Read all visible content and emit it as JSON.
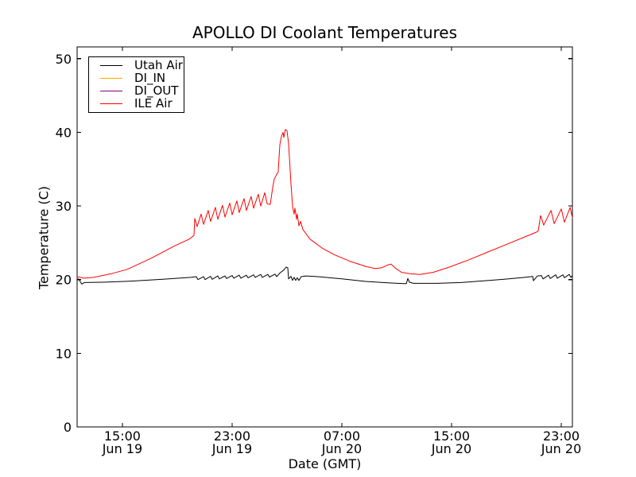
{
  "chart_data": {
    "type": "line",
    "title": "APOLLO DI Coolant Temperatures",
    "xlabel": "Date (GMT)",
    "ylabel": "Temperature (C)",
    "x_unit": "hours since Jun 19 00:00 GMT",
    "xlim": [
      11.7,
      47.81
    ],
    "ylim": [
      0,
      51.6
    ],
    "grid": false,
    "legend_position": "upper left",
    "y_ticks": [
      0,
      10,
      20,
      30,
      40,
      50
    ],
    "x_ticks": [
      {
        "t": 15,
        "time": "15:00",
        "date": "Jun 19"
      },
      {
        "t": 23,
        "time": "23:00",
        "date": "Jun 19"
      },
      {
        "t": 31,
        "time": "07:00",
        "date": "Jun 20"
      },
      {
        "t": 39,
        "time": "15:00",
        "date": "Jun 20"
      },
      {
        "t": 47,
        "time": "23:00",
        "date": "Jun 20"
      }
    ],
    "series": [
      {
        "name": "Utah Air",
        "color": "#000000",
        "points": [
          [
            11.7,
            19.95
          ],
          [
            11.81,
            20.1
          ],
          [
            11.92,
            19.75
          ],
          [
            12.04,
            19.4
          ],
          [
            12.22,
            19.6
          ],
          [
            13.61,
            19.65
          ],
          [
            15.64,
            19.8
          ],
          [
            17.96,
            20.05
          ],
          [
            19.99,
            20.3
          ],
          [
            20.39,
            20.4
          ],
          [
            20.51,
            20.0
          ],
          [
            20.92,
            20.4
          ],
          [
            21.03,
            20.0
          ],
          [
            21.43,
            20.45
          ],
          [
            21.55,
            20.05
          ],
          [
            21.96,
            20.5
          ],
          [
            22.07,
            20.1
          ],
          [
            22.48,
            20.5
          ],
          [
            22.59,
            20.15
          ],
          [
            23.0,
            20.55
          ],
          [
            23.12,
            20.2
          ],
          [
            23.52,
            20.6
          ],
          [
            23.64,
            20.2
          ],
          [
            24.04,
            20.6
          ],
          [
            24.16,
            20.25
          ],
          [
            24.57,
            20.65
          ],
          [
            24.68,
            20.3
          ],
          [
            25.09,
            20.7
          ],
          [
            25.2,
            20.3
          ],
          [
            25.61,
            20.7
          ],
          [
            25.72,
            20.35
          ],
          [
            26.13,
            20.75
          ],
          [
            26.25,
            20.4
          ],
          [
            26.48,
            20.9
          ],
          [
            26.77,
            21.3
          ],
          [
            26.94,
            21.7
          ],
          [
            27.06,
            21.6
          ],
          [
            27.12,
            20.1
          ],
          [
            27.29,
            20.45
          ],
          [
            27.41,
            19.9
          ],
          [
            27.52,
            20.3
          ],
          [
            27.64,
            19.9
          ],
          [
            27.75,
            20.25
          ],
          [
            27.87,
            19.9
          ],
          [
            28.04,
            20.4
          ],
          [
            28.39,
            20.5
          ],
          [
            29.26,
            20.4
          ],
          [
            31.0,
            20.1
          ],
          [
            32.74,
            19.75
          ],
          [
            34.48,
            19.55
          ],
          [
            35.52,
            19.45
          ],
          [
            35.7,
            19.45
          ],
          [
            35.81,
            20.15
          ],
          [
            35.93,
            19.65
          ],
          [
            36.22,
            19.5
          ],
          [
            37.96,
            19.5
          ],
          [
            39.7,
            19.6
          ],
          [
            41.43,
            19.85
          ],
          [
            43.17,
            20.1
          ],
          [
            44.33,
            20.3
          ],
          [
            44.8,
            20.4
          ],
          [
            44.91,
            20.45
          ],
          [
            44.97,
            19.85
          ],
          [
            45.26,
            20.5
          ],
          [
            45.55,
            20.55
          ],
          [
            45.67,
            20.1
          ],
          [
            46.07,
            20.6
          ],
          [
            46.19,
            20.15
          ],
          [
            46.59,
            20.65
          ],
          [
            46.71,
            20.2
          ],
          [
            47.12,
            20.65
          ],
          [
            47.23,
            20.25
          ],
          [
            47.58,
            20.7
          ],
          [
            47.7,
            20.3
          ],
          [
            47.81,
            20.55
          ]
        ]
      },
      {
        "name": "DI_IN",
        "color": "#ffa500",
        "points": []
      },
      {
        "name": "DI_OUT",
        "color": "#800080",
        "points": []
      },
      {
        "name": "ILE Air",
        "color": "#ff0000",
        "points": [
          [
            11.7,
            20.4
          ],
          [
            12.2,
            20.2
          ],
          [
            12.9,
            20.3
          ],
          [
            14.19,
            20.8
          ],
          [
            15.35,
            21.4
          ],
          [
            17.09,
            22.9
          ],
          [
            18.83,
            24.6
          ],
          [
            19.87,
            25.5
          ],
          [
            20.22,
            26.0
          ],
          [
            20.28,
            28.3
          ],
          [
            20.45,
            27.2
          ],
          [
            20.74,
            28.9
          ],
          [
            20.92,
            27.5
          ],
          [
            21.26,
            29.4
          ],
          [
            21.43,
            27.9
          ],
          [
            21.78,
            29.8
          ],
          [
            21.96,
            28.2
          ],
          [
            22.3,
            30.1
          ],
          [
            22.48,
            28.5
          ],
          [
            22.83,
            30.4
          ],
          [
            23.0,
            28.8
          ],
          [
            23.35,
            30.7
          ],
          [
            23.52,
            29.1
          ],
          [
            23.87,
            31.0
          ],
          [
            24.04,
            29.4
          ],
          [
            24.39,
            31.3
          ],
          [
            24.57,
            29.7
          ],
          [
            24.91,
            31.6
          ],
          [
            25.09,
            30.0
          ],
          [
            25.38,
            31.8
          ],
          [
            25.55,
            30.3
          ],
          [
            25.78,
            30.2
          ],
          [
            25.96,
            32.5
          ],
          [
            26.07,
            33.6
          ],
          [
            26.25,
            34.3
          ],
          [
            26.36,
            34.6
          ],
          [
            26.48,
            38.3
          ],
          [
            26.59,
            39.4
          ],
          [
            26.71,
            40.0
          ],
          [
            26.77,
            39.3
          ],
          [
            26.88,
            40.4
          ],
          [
            27.0,
            40.2
          ],
          [
            27.12,
            38.5
          ],
          [
            27.29,
            33.0
          ],
          [
            27.41,
            30.0
          ],
          [
            27.52,
            28.9
          ],
          [
            27.58,
            29.7
          ],
          [
            27.7,
            28.2
          ],
          [
            27.75,
            28.9
          ],
          [
            27.87,
            27.3
          ],
          [
            27.99,
            27.9
          ],
          [
            28.16,
            26.8
          ],
          [
            28.68,
            25.5
          ],
          [
            29.55,
            24.3
          ],
          [
            30.42,
            23.4
          ],
          [
            31.58,
            22.5
          ],
          [
            32.74,
            21.8
          ],
          [
            33.43,
            21.5
          ],
          [
            33.9,
            21.6
          ],
          [
            34.36,
            22.0
          ],
          [
            34.59,
            22.1
          ],
          [
            34.94,
            21.5
          ],
          [
            35.35,
            21.0
          ],
          [
            35.93,
            20.8
          ],
          [
            36.68,
            20.7
          ],
          [
            37.67,
            21.0
          ],
          [
            38.83,
            21.7
          ],
          [
            40.28,
            22.7
          ],
          [
            41.72,
            23.8
          ],
          [
            43.17,
            24.9
          ],
          [
            44.33,
            25.8
          ],
          [
            45.14,
            26.4
          ],
          [
            45.32,
            26.6
          ],
          [
            45.49,
            28.7
          ],
          [
            45.72,
            27.4
          ],
          [
            46.25,
            29.4
          ],
          [
            46.48,
            27.6
          ],
          [
            47.0,
            29.6
          ],
          [
            47.23,
            27.8
          ],
          [
            47.64,
            29.8
          ],
          [
            47.81,
            28.4
          ]
        ]
      }
    ]
  }
}
